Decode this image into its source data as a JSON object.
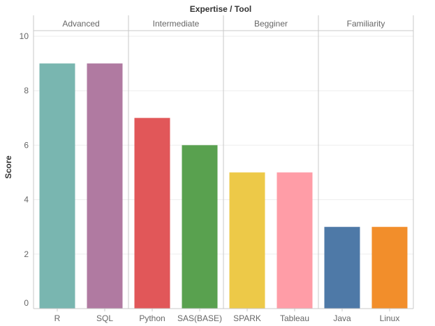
{
  "chart_data": {
    "type": "bar",
    "title": "Expertise / Tool",
    "ylabel": "Score",
    "xlabel": "",
    "ylim": [
      0,
      10
    ],
    "yticks": [
      0,
      2,
      4,
      6,
      8,
      10
    ],
    "grid": true,
    "legend": "none",
    "groups": [
      {
        "name": "Advanced",
        "bars": [
          {
            "category": "R",
            "value": 9,
            "color": "#79b6b0"
          },
          {
            "category": "SQL",
            "value": 9,
            "color": "#b07aa1"
          }
        ]
      },
      {
        "name": "Intermediate",
        "bars": [
          {
            "category": "Python",
            "value": 7,
            "color": "#e15759"
          },
          {
            "category": "SAS(BASE)",
            "value": 6,
            "color": "#59a14f"
          }
        ]
      },
      {
        "name": "Begginer",
        "bars": [
          {
            "category": "SPARK",
            "value": 5,
            "color": "#edc948"
          },
          {
            "category": "Tableau",
            "value": 5,
            "color": "#ff9da7"
          }
        ]
      },
      {
        "name": "Familiarity",
        "bars": [
          {
            "category": "Java",
            "value": 3,
            "color": "#4e79a7"
          },
          {
            "category": "Linux",
            "value": 3,
            "color": "#f28e2b"
          }
        ]
      }
    ]
  }
}
